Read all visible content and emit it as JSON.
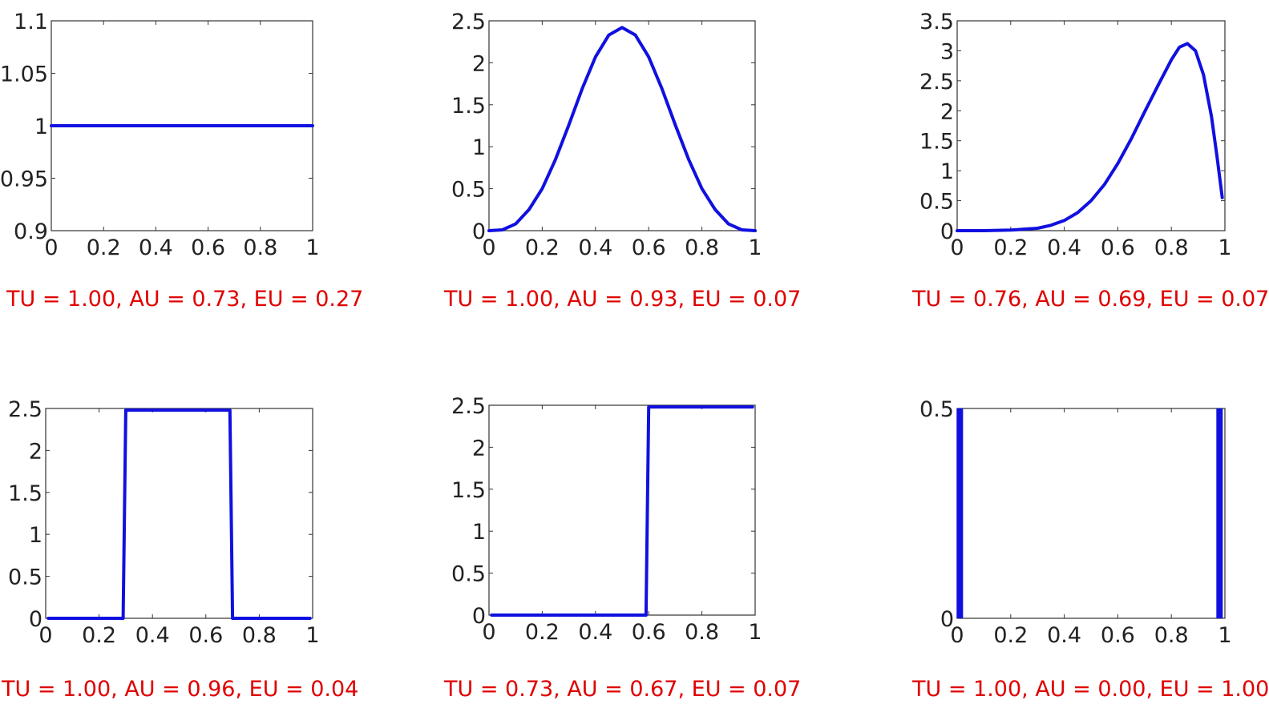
{
  "colors": {
    "curve": "#1010e0",
    "caption": "#e00000"
  },
  "chart_data": [
    {
      "type": "line",
      "title": "",
      "xlabel": "",
      "ylabel": "",
      "xlim": [
        0,
        1
      ],
      "ylim": [
        0.9,
        1.1
      ],
      "x_ticks": [
        "0",
        "0.2",
        "0.4",
        "0.6",
        "0.8",
        "1"
      ],
      "y_ticks": [
        "0.9",
        "0.95",
        "1",
        "1.05",
        "1.1"
      ],
      "series": [
        {
          "x": [
            0,
            1
          ],
          "y": [
            1,
            1
          ]
        }
      ],
      "caption": "TU = 1.00, AU = 0.73, EU = 0.27"
    },
    {
      "type": "line",
      "title": "",
      "xlabel": "",
      "ylabel": "",
      "xlim": [
        0,
        1
      ],
      "ylim": [
        0,
        2.5
      ],
      "x_ticks": [
        "0",
        "0.2",
        "0.4",
        "0.6",
        "0.8",
        "1"
      ],
      "y_ticks": [
        "0",
        "0.5",
        "1",
        "1.5",
        "2",
        "2.5"
      ],
      "series": [
        {
          "x": [
            0,
            0.05,
            0.1,
            0.15,
            0.2,
            0.25,
            0.3,
            0.35,
            0.4,
            0.45,
            0.5,
            0.55,
            0.6,
            0.65,
            0.7,
            0.75,
            0.8,
            0.85,
            0.9,
            0.95,
            1
          ],
          "y": [
            0,
            0.01,
            0.08,
            0.25,
            0.5,
            0.85,
            1.26,
            1.69,
            2.07,
            2.33,
            2.42,
            2.33,
            2.07,
            1.69,
            1.26,
            0.85,
            0.5,
            0.25,
            0.08,
            0.01,
            0
          ]
        }
      ],
      "caption": "TU = 1.00, AU = 0.93, EU = 0.07"
    },
    {
      "type": "line",
      "title": "",
      "xlabel": "",
      "ylabel": "",
      "xlim": [
        0,
        1
      ],
      "ylim": [
        0,
        3.5
      ],
      "x_ticks": [
        "0",
        "0.2",
        "0.4",
        "0.6",
        "0.8",
        "1"
      ],
      "y_ticks": [
        "0",
        "0.5",
        "1",
        "1.5",
        "2",
        "2.5",
        "3",
        "3.5"
      ],
      "series": [
        {
          "x": [
            0,
            0.1,
            0.2,
            0.3,
            0.35,
            0.4,
            0.45,
            0.5,
            0.55,
            0.6,
            0.65,
            0.7,
            0.75,
            0.8,
            0.83,
            0.86,
            0.89,
            0.92,
            0.95,
            0.97,
            0.99
          ],
          "y": [
            0,
            0,
            0.01,
            0.04,
            0.09,
            0.17,
            0.3,
            0.5,
            0.77,
            1.12,
            1.53,
            1.98,
            2.42,
            2.85,
            3.06,
            3.12,
            3.0,
            2.6,
            1.9,
            1.25,
            0.55
          ]
        }
      ],
      "caption": "TU = 0.76, AU = 0.69, EU = 0.07"
    },
    {
      "type": "line",
      "title": "",
      "xlabel": "",
      "ylabel": "",
      "xlim": [
        0,
        1
      ],
      "ylim": [
        0,
        2.5
      ],
      "x_ticks": [
        "0",
        "0.2",
        "0.4",
        "0.6",
        "0.8",
        "1"
      ],
      "y_ticks": [
        "0",
        "0.5",
        "1",
        "1.5",
        "2",
        "2.5"
      ],
      "series": [
        {
          "x": [
            0.01,
            0.29,
            0.3,
            0.69,
            0.7,
            0.99
          ],
          "y": [
            0,
            0,
            2.48,
            2.48,
            0,
            0
          ]
        }
      ],
      "caption": "TU = 1.00, AU = 0.96, EU = 0.04"
    },
    {
      "type": "line",
      "title": "",
      "xlabel": "",
      "ylabel": "",
      "xlim": [
        0,
        1
      ],
      "ylim": [
        0,
        2.5
      ],
      "x_ticks": [
        "0",
        "0.2",
        "0.4",
        "0.6",
        "0.8",
        "1"
      ],
      "y_ticks": [
        "0",
        "0.5",
        "1",
        "1.5",
        "2",
        "2.5"
      ],
      "series": [
        {
          "x": [
            0.01,
            0.59,
            0.6,
            0.99
          ],
          "y": [
            0,
            0,
            2.48,
            2.48
          ]
        }
      ],
      "caption": "TU = 0.73, AU = 0.67, EU = 0.07"
    },
    {
      "type": "bar",
      "title": "",
      "xlabel": "",
      "ylabel": "",
      "xlim": [
        0,
        1
      ],
      "ylim": [
        0,
        0.5
      ],
      "x_ticks": [
        "0",
        "0.2",
        "0.4",
        "0.6",
        "0.8",
        "1"
      ],
      "y_ticks": [
        "0",
        "0.5"
      ],
      "bars": [
        {
          "x": 0.01,
          "y": 0.5
        },
        {
          "x": 0.98,
          "y": 0.5
        }
      ],
      "caption": "TU = 1.00, AU = 0.00, EU = 1.00"
    }
  ]
}
